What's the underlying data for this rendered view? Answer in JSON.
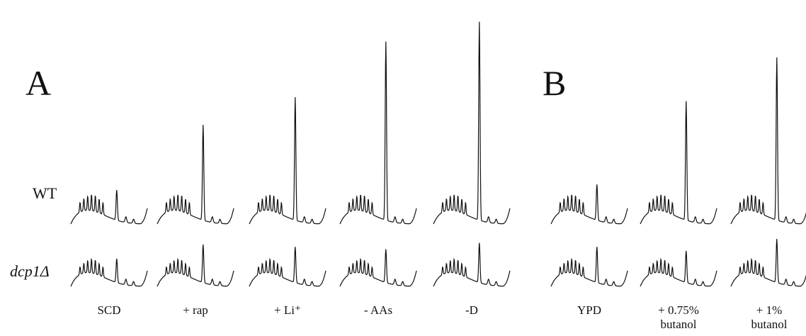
{
  "panels": [
    {
      "letter": "A"
    },
    {
      "letter": "B"
    }
  ],
  "rows": {
    "wt": "WT",
    "mutant": "dcp1Δ"
  },
  "conditions": [
    {
      "label": "SCD",
      "label2": "",
      "panel": "A",
      "wt_peak": 0.38,
      "mut_peak": 0.3
    },
    {
      "label": "+ rap",
      "label2": "",
      "panel": "A",
      "wt_peak": 1.2,
      "mut_peak": 0.48
    },
    {
      "label": "+ Li⁺",
      "label2": "",
      "panel": "A",
      "wt_peak": 1.55,
      "mut_peak": 0.45
    },
    {
      "label": "- AAs",
      "label2": "",
      "panel": "A",
      "wt_peak": 2.25,
      "mut_peak": 0.42
    },
    {
      "label": "-D",
      "label2": "",
      "panel": "A",
      "wt_peak": 2.5,
      "mut_peak": 0.5
    },
    {
      "label": "YPD",
      "label2": "",
      "panel": "B",
      "wt_peak": 0.45,
      "mut_peak": 0.45
    },
    {
      "label": "+ 0.75%",
      "label2": "butanol",
      "panel": "B",
      "wt_peak": 1.5,
      "mut_peak": 0.4
    },
    {
      "label": "+ 1%",
      "label2": "butanol",
      "panel": "B",
      "wt_peak": 2.05,
      "mut_peak": 0.55
    }
  ]
}
